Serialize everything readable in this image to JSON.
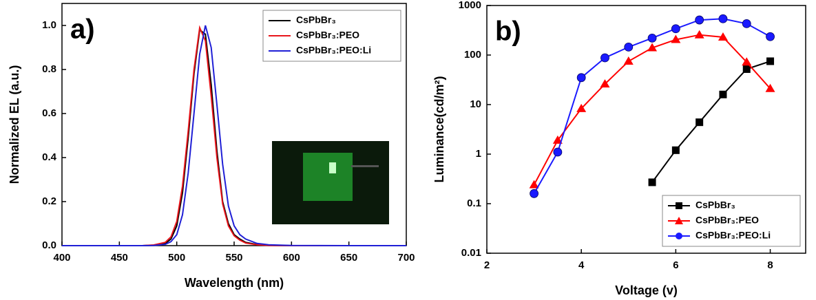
{
  "chart_data": [
    {
      "type": "line",
      "panel_label": "a)",
      "x_label": "Wavelength (nm)",
      "y_label": "Normalized EL (a.u.)",
      "x": [
        400,
        450,
        470,
        480,
        490,
        495,
        500,
        505,
        510,
        515,
        520,
        525,
        530,
        535,
        540,
        545,
        550,
        555,
        560,
        570,
        580,
        600,
        650,
        700
      ],
      "series": [
        {
          "name": "CsPbBr₃",
          "color": "#000000",
          "values": [
            0,
            0,
            0,
            0.002,
            0.01,
            0.03,
            0.09,
            0.24,
            0.49,
            0.78,
            0.98,
            0.96,
            0.73,
            0.43,
            0.2,
            0.1,
            0.05,
            0.03,
            0.015,
            0.005,
            0.002,
            0,
            0,
            0
          ]
        },
        {
          "name": "CsPbBr₃:PEO",
          "color": "#e8141a",
          "values": [
            0,
            0,
            0,
            0.003,
            0.015,
            0.04,
            0.11,
            0.27,
            0.52,
            0.8,
            0.99,
            0.93,
            0.68,
            0.4,
            0.19,
            0.09,
            0.045,
            0.025,
            0.012,
            0.004,
            0.001,
            0,
            0,
            0
          ]
        },
        {
          "name": "CsPbBr₃:PEO:Li",
          "color": "#1f1fd6",
          "values": [
            0,
            0,
            0,
            0.001,
            0.006,
            0.018,
            0.05,
            0.14,
            0.33,
            0.6,
            0.87,
            1.0,
            0.9,
            0.64,
            0.37,
            0.18,
            0.09,
            0.05,
            0.03,
            0.01,
            0.004,
            0.001,
            0,
            0
          ]
        }
      ],
      "xlim": [
        400,
        700
      ],
      "xticks": [
        400,
        450,
        500,
        550,
        600,
        650,
        700
      ],
      "ylim": [
        0,
        1.1
      ],
      "yticks": [
        {
          "value": 0,
          "label": "0.0"
        },
        {
          "value": 0.2,
          "label": "0.2"
        },
        {
          "value": 0.4,
          "label": "0.4"
        },
        {
          "value": 0.6,
          "label": "0.6"
        },
        {
          "value": 0.8,
          "label": "0.8"
        },
        {
          "value": 1,
          "label": "1.0"
        }
      ],
      "grid": false,
      "legend": "top-right"
    },
    {
      "type": "line",
      "panel_label": "b)",
      "x_label": "Voltage (v)",
      "y_label": "Luminance(cd/m²)",
      "log_y": true,
      "x": [
        3,
        3.5,
        4,
        4.5,
        5,
        5.5,
        6,
        6.5,
        7,
        7.5,
        8
      ],
      "series": [
        {
          "name": "CsPbBr₃",
          "color": "#000000",
          "marker": "square",
          "values": [
            null,
            null,
            null,
            null,
            null,
            0.27,
            1.2,
            4.4,
            16,
            52,
            75
          ]
        },
        {
          "name": "CsPbBr₃:PEO",
          "color": "#ff0000",
          "marker": "triangle",
          "values": [
            0.24,
            1.9,
            8.3,
            26,
            75,
            140,
            205,
            255,
            230,
            72,
            21
          ]
        },
        {
          "name": "CsPbBr₃:PEO:Li",
          "color": "#1a1aff",
          "marker": "circle",
          "values": [
            0.16,
            1.1,
            35,
            88,
            145,
            220,
            340,
            510,
            540,
            430,
            235
          ]
        }
      ],
      "xlim": [
        2,
        8.75
      ],
      "xticks": [
        2,
        4,
        6,
        8
      ],
      "ylim": [
        0.01,
        1000
      ],
      "yticks": [
        0.01,
        0.1,
        1,
        10,
        100,
        1000
      ],
      "grid": false,
      "legend": "bottom-right"
    }
  ]
}
